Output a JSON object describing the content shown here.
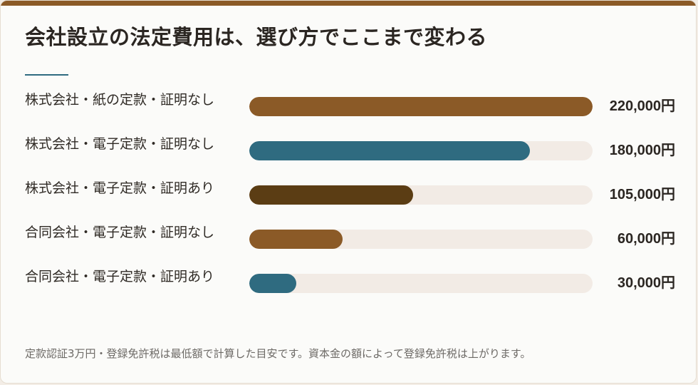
{
  "title": "会社設立の法定費用は、選び方でここまで変わる",
  "colors": {
    "accent_top_bar": "#8b5a27",
    "title_rule": "#2f6b80",
    "track": "#f2ebe5",
    "brown": "#8b5a27",
    "teal": "#2f6b80",
    "dark_brown": "#5b3d14"
  },
  "footnote": "定款認証3万円・登録免許税は最低額で計算した目安です。資本金の額によって登録免許税は上がります。",
  "chart_data": {
    "type": "bar",
    "orientation": "horizontal",
    "title": "会社設立の法定費用は、選び方でここまで変わる",
    "categories": [
      "株式会社・紙の定款・証明なし",
      "株式会社・電子定款・証明なし",
      "株式会社・電子定款・証明あり",
      "合同会社・電子定款・証明なし",
      "合同会社・電子定款・証明あり"
    ],
    "values": [
      220000,
      180000,
      105000,
      60000,
      30000
    ],
    "value_labels": [
      "220,000円",
      "180,000円",
      "105,000円",
      "60,000円",
      "30,000円"
    ],
    "bar_colors": [
      "#8b5a27",
      "#2f6b80",
      "#5b3d14",
      "#8b5a27",
      "#2f6b80"
    ],
    "xlim": [
      0,
      220000
    ],
    "grid": false,
    "legend": "none"
  }
}
